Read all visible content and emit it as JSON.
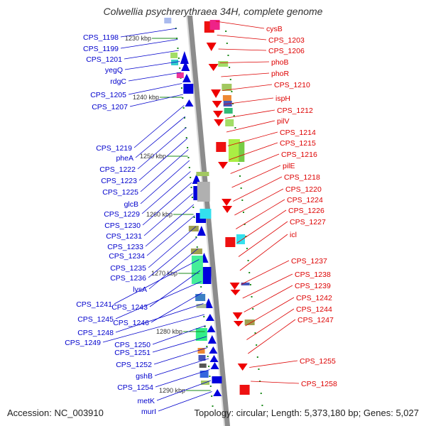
{
  "title": "Colwellia psychrerythraea 34H, complete genome",
  "accession": "Accession: NC_003910",
  "topology": "Topology: circular; Length: 5,373,180 bp; Genes: 5,027",
  "colors": {
    "backbone": "#8c8c8c",
    "forward_label": "#0000cc",
    "reverse_label": "#dd0000",
    "tick": "#1a8a1a",
    "forward_gene": "#0000dd",
    "reverse_gene": "#ee0000"
  },
  "scale_labels": [
    "1230 kbp",
    "1240 kbp",
    "1250 kbp",
    "1260 kbp",
    "1270 kbp",
    "1280 kbp",
    "1290 kbp"
  ],
  "left_labels": [
    "CPS_1198",
    "CPS_1199",
    "CPS_1201",
    "yegQ",
    "rdgC",
    "CPS_1205",
    "CPS_1207",
    "CPS_1219",
    "pheA",
    "CPS_1222",
    "CPS_1223",
    "CPS_1225",
    "glcB",
    "CPS_1229",
    "CPS_1230",
    "CPS_1231",
    "CPS_1233",
    "CPS_1234",
    "CPS_1235",
    "CPS_1236",
    "lysA",
    "CPS_1241",
    "CPS_1243",
    "CPS_1245",
    "CPS_1246",
    "CPS_1248",
    "CPS_1249",
    "CPS_1250",
    "CPS_1251",
    "CPS_1252",
    "gshB",
    "CPS_1254",
    "metK",
    "murI"
  ],
  "right_labels": [
    "cysB",
    "CPS_1203",
    "CPS_1206",
    "phoB",
    "phoR",
    "CPS_1210",
    "ispH",
    "CPS_1212",
    "pilV",
    "CPS_1214",
    "CPS_1215",
    "CPS_1216",
    "pilE",
    "CPS_1218",
    "CPS_1220",
    "CPS_1224",
    "CPS_1226",
    "CPS_1227",
    "icl",
    "CPS_1237",
    "CPS_1238",
    "CPS_1239",
    "CPS_1242",
    "CPS_1244",
    "CPS_1247",
    "CPS_1255",
    "CPS_1258"
  ]
}
